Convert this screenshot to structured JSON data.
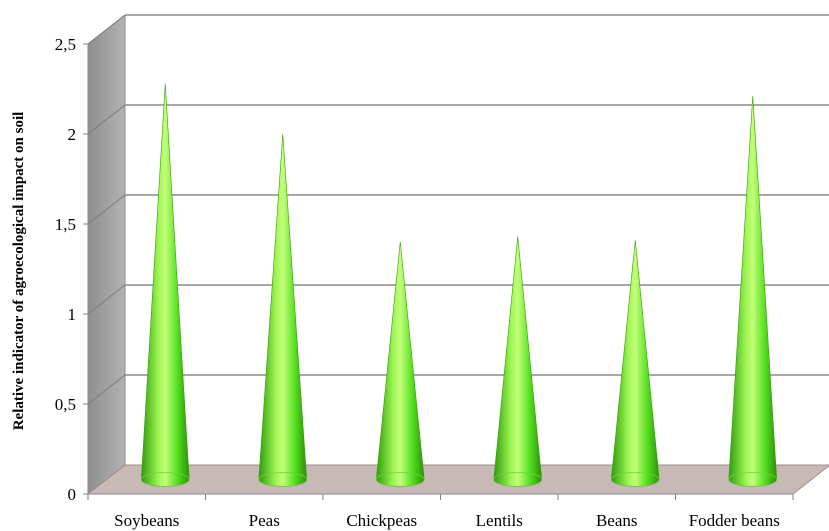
{
  "chart_data": {
    "type": "bar",
    "bar_shape": "cone",
    "three_d": true,
    "categories": [
      "Soybeans",
      "Peas",
      "Chickpeas",
      "Lentils",
      "Beans",
      "Fodder beans"
    ],
    "values": [
      2.2,
      1.92,
      1.32,
      1.35,
      1.33,
      2.13
    ],
    "ylabel": "Relative indicator of agroecological impact on soil",
    "ylim": [
      0,
      2.5
    ],
    "yticks": [
      {
        "value": 0,
        "label": "0"
      },
      {
        "value": 0.5,
        "label": "0,5"
      },
      {
        "value": 1,
        "label": "1"
      },
      {
        "value": 1.5,
        "label": "1,5"
      },
      {
        "value": 2,
        "label": "2"
      },
      {
        "value": 2.5,
        "label": "2,5"
      }
    ],
    "grid": true,
    "colors": {
      "cone_light": "#b8ff6a",
      "cone_mid": "#55e020",
      "cone_dark": "#2f9a0c",
      "floor": "#c7b9b6",
      "side_wall": "#a4a4a4",
      "grid": "#8c8c8c"
    }
  }
}
